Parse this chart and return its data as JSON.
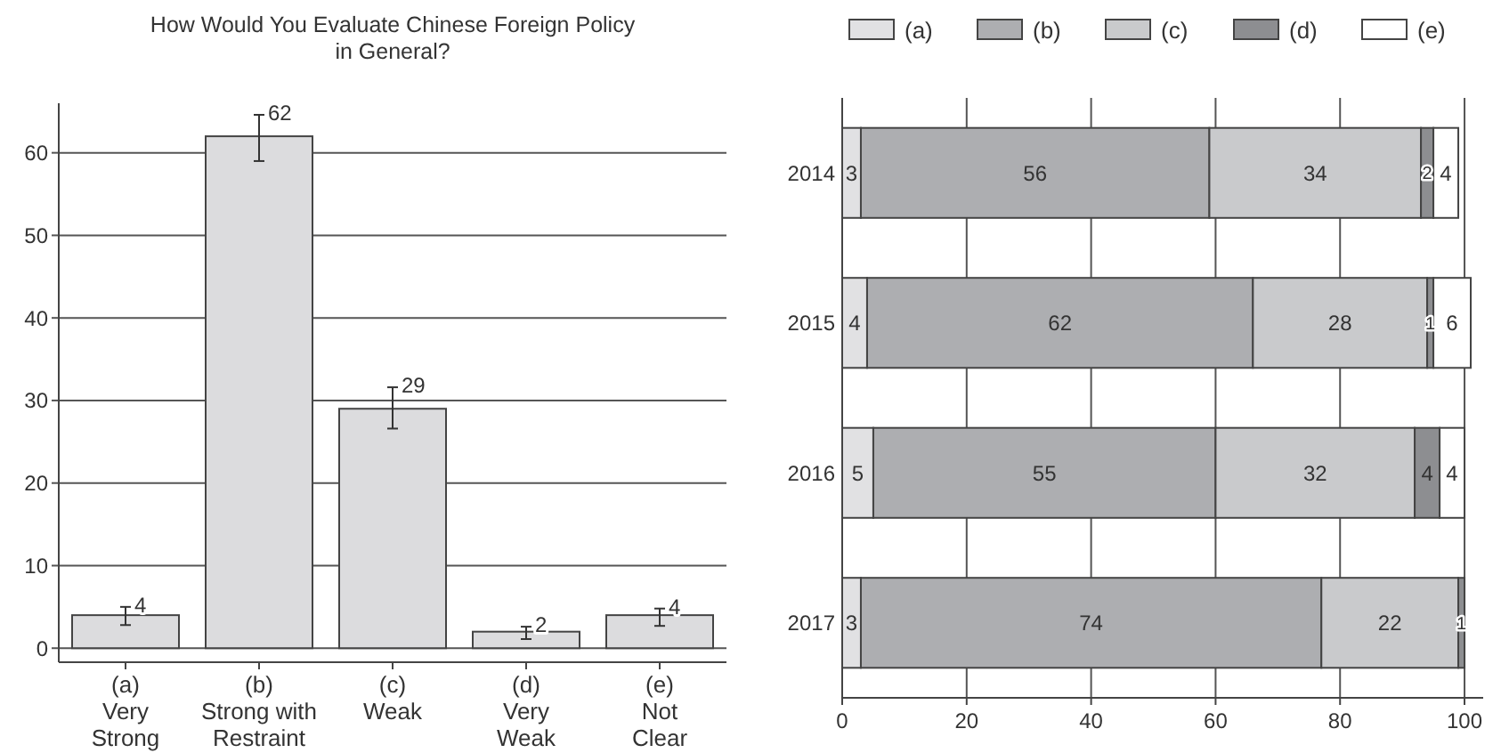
{
  "chart_data": [
    {
      "type": "bar",
      "title": "How Would You Evaluate Chinese Foreign Policy in General?",
      "categories": [
        "(a)\nVery\nStrong",
        "(b)\nStrong with\nRestraint",
        "(c)\nWeak",
        "(d)\nVery\nWeak",
        "(e)\nNot\nClear"
      ],
      "values": [
        4,
        62,
        29,
        2,
        4
      ],
      "color": "#dcdcde",
      "errors": [
        [
          2.8,
          5
        ],
        [
          59,
          64.6
        ],
        [
          26.6,
          31.6
        ],
        [
          1.1,
          2.6
        ],
        [
          2.7,
          4.8
        ]
      ],
      "data_labels": true,
      "ylim": [
        -1.7,
        66
      ],
      "yticks": [
        0,
        10,
        20,
        30,
        40,
        50,
        60
      ],
      "grid": "y"
    },
    {
      "type": "bar",
      "orientation": "horizontal",
      "stacked": true,
      "categories": [
        "2014",
        "2015",
        "2016",
        "2017"
      ],
      "series": [
        {
          "name": "(a)",
          "color": "#e1e1e3",
          "values": [
            3,
            4,
            5,
            3
          ]
        },
        {
          "name": "(b)",
          "color": "#adaeb1",
          "values": [
            56,
            62,
            55,
            74
          ]
        },
        {
          "name": "(c)",
          "color": "#c9cacc",
          "values": [
            34,
            28,
            32,
            22
          ]
        },
        {
          "name": "(d)",
          "color": "#8d8e91",
          "values": [
            2,
            1,
            4,
            1
          ]
        },
        {
          "name": "(e)",
          "color": "#ffffff",
          "values": [
            4,
            6,
            4,
            null
          ]
        }
      ],
      "data_labels": true,
      "xlim": [
        0,
        103
      ],
      "xticks": [
        0,
        20,
        40,
        60,
        80,
        100
      ],
      "grid": "x",
      "legend": "top"
    }
  ]
}
